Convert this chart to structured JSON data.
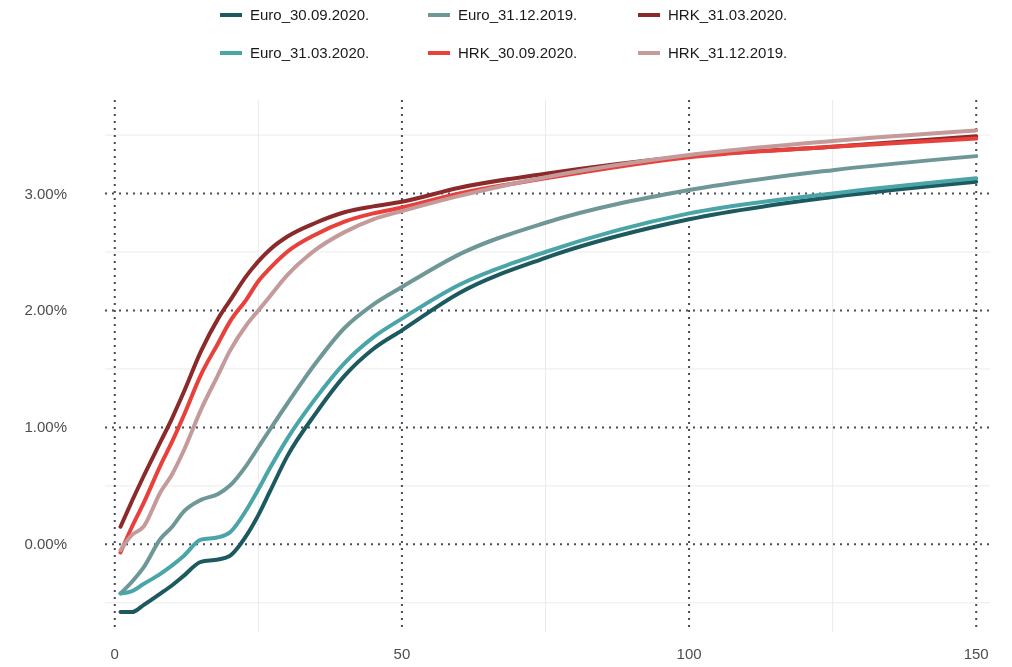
{
  "chart_data": {
    "type": "line",
    "legend": "top",
    "grid": true,
    "xlim": [
      -1.7,
      152.4
    ],
    "ylim": [
      -0.75,
      3.8
    ],
    "xticks": [
      0,
      50,
      100,
      150
    ],
    "yticks": [
      {
        "value": 0,
        "label": "0.00%"
      },
      {
        "value": 1,
        "label": "1.00%"
      },
      {
        "value": 2,
        "label": "2.00%"
      },
      {
        "value": 3,
        "label": "3.00%"
      }
    ],
    "x": [
      1,
      3,
      5,
      8,
      10,
      12,
      15,
      18,
      20,
      23,
      25,
      27,
      30,
      35,
      40,
      45,
      50,
      60,
      75,
      100,
      125,
      150
    ],
    "series": [
      {
        "name": "Euro_30.09.2020.",
        "color": "#1d5a5f",
        "values": [
          -0.58,
          -0.58,
          -0.52,
          -0.42,
          -0.35,
          -0.27,
          -0.15,
          -0.13,
          -0.1,
          0.08,
          0.25,
          0.45,
          0.75,
          1.12,
          1.44,
          1.67,
          1.83,
          2.15,
          2.45,
          2.78,
          2.97,
          3.1
        ]
      },
      {
        "name": "Euro_31.12.2019.",
        "color": "#6f9797",
        "values": [
          -0.42,
          -0.32,
          -0.2,
          0.05,
          0.15,
          0.28,
          0.38,
          0.43,
          0.5,
          0.68,
          0.83,
          0.98,
          1.2,
          1.55,
          1.85,
          2.05,
          2.2,
          2.48,
          2.75,
          3.03,
          3.2,
          3.32
        ]
      },
      {
        "name": "HRK_31.03.2020.",
        "color": "#8b2a2a",
        "values": [
          0.15,
          0.37,
          0.58,
          0.88,
          1.08,
          1.3,
          1.65,
          1.93,
          2.08,
          2.3,
          2.42,
          2.52,
          2.63,
          2.75,
          2.84,
          2.89,
          2.93,
          3.05,
          3.17,
          3.32,
          3.4,
          3.49
        ]
      },
      {
        "name": "Euro_31.03.2020.",
        "color": "#4aa5a9",
        "values": [
          -0.42,
          -0.4,
          -0.34,
          -0.25,
          -0.18,
          -0.1,
          0.04,
          0.06,
          0.1,
          0.3,
          0.47,
          0.65,
          0.9,
          1.25,
          1.55,
          1.77,
          1.93,
          2.22,
          2.5,
          2.83,
          3.0,
          3.13
        ]
      },
      {
        "name": "HRK_30.09.2020.",
        "color": "#e8413c",
        "values": [
          -0.07,
          0.15,
          0.35,
          0.68,
          0.88,
          1.1,
          1.45,
          1.72,
          1.9,
          2.1,
          2.25,
          2.36,
          2.5,
          2.65,
          2.76,
          2.83,
          2.88,
          3.0,
          3.13,
          3.31,
          3.4,
          3.47
        ]
      },
      {
        "name": "HRK_31.12.2019.",
        "color": "#c49a9a",
        "values": [
          -0.05,
          0.08,
          0.15,
          0.45,
          0.6,
          0.8,
          1.15,
          1.45,
          1.65,
          1.88,
          2.0,
          2.12,
          2.3,
          2.52,
          2.67,
          2.78,
          2.85,
          2.98,
          3.14,
          3.33,
          3.45,
          3.54
        ]
      }
    ]
  }
}
